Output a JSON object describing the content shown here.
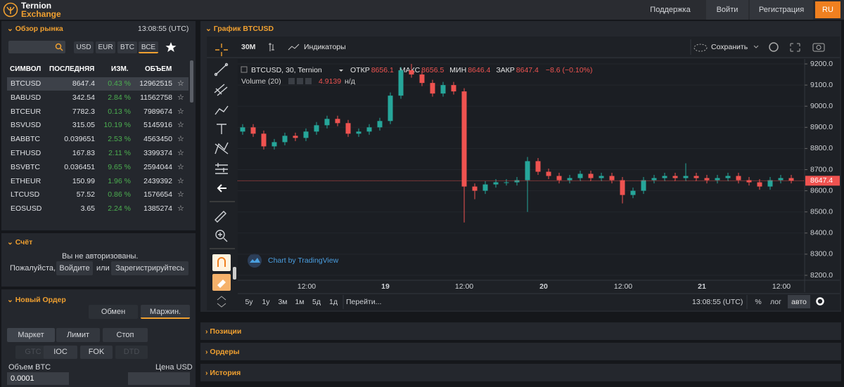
{
  "header": {
    "brand": [
      "Ternion",
      "Exchange"
    ],
    "nav": [
      "Поддержка",
      "Войти",
      "Регистрация",
      "RU"
    ]
  },
  "market": {
    "title": "Обзор рынка",
    "time": "13:08:55 (UTC)",
    "filters": [
      "USD",
      "EUR",
      "BTC",
      "ВСЕ"
    ],
    "columns": [
      "СИМВОЛ",
      "ПОСЛЕДНЯЯ",
      "ИЗМ.",
      "ОБЪЕМ"
    ],
    "rows": [
      [
        "BTCUSD",
        "8647.4",
        "0.43 %",
        "12962515"
      ],
      [
        "BABUSD",
        "342.54",
        "2.84 %",
        "11562758"
      ],
      [
        "BTCEUR",
        "7782.3",
        "0.13 %",
        "7989674"
      ],
      [
        "BSVUSD",
        "315.05",
        "10.19 %",
        "5145916"
      ],
      [
        "BABBTC",
        "0.039651",
        "2.53 %",
        "4563450"
      ],
      [
        "ETHUSD",
        "167.83",
        "2.11 %",
        "3399374"
      ],
      [
        "BSVBTC",
        "0.036451",
        "9.65 %",
        "2594044"
      ],
      [
        "ETHEUR",
        "150.99",
        "1.96 %",
        "2439392"
      ],
      [
        "LTCUSD",
        "57.52",
        "0.86 %",
        "1576654"
      ],
      [
        "EOSUSD",
        "3.65",
        "2.24 %",
        "1385274"
      ]
    ]
  },
  "account": {
    "title": "Счёт",
    "message": "Вы не авторизованы.",
    "login": [
      "Пожалуйста,",
      "Войдите",
      "или",
      "Зарегистрируйтесь"
    ]
  },
  "order": {
    "title": "Новый Ордер",
    "modes": [
      "Обмен",
      "Маржин."
    ],
    "types": [
      "Маркет",
      "Лимит",
      "Стоп"
    ],
    "tif": [
      "GTC",
      "IOC",
      "FOK",
      "DTD"
    ],
    "amount_label": "Объем BTC",
    "price_label": "Цена USD",
    "amount": "0.0001"
  },
  "chart": {
    "title": "График BTCUSD",
    "interval": "30M",
    "indicators": "Индикаторы",
    "save": "Сохранить",
    "symbol": "BTCUSD, 30, Ternion",
    "ohlc_labels": [
      "ОТКР",
      "МАКС",
      "МИН",
      "ЗАКР"
    ],
    "ohlc": [
      8656.1,
      8656.5,
      8646.4,
      8647.4
    ],
    "change": "−8.6 (−0.10%)",
    "volume_label": "Volume (20)",
    "volume_value": "4.9139",
    "volume_na": "н/д",
    "watermark": "Chart by TradingView",
    "time_labels": [
      "12:00",
      "19",
      "12:00",
      "20",
      "12:00",
      "21",
      "12:00"
    ],
    "ranges": [
      "5у",
      "1у",
      "3м",
      "1м",
      "5д",
      "1д"
    ],
    "goto": "Перейти...",
    "clock": "13:08:55 (UTC)",
    "scale_buttons": [
      "%",
      "лог",
      "авто"
    ],
    "last_price": 8647.4,
    "ylim": [
      8180,
      9220
    ],
    "yticks": [
      {
        "value": 8200,
        "label": "8200.0"
      },
      {
        "value": 8300,
        "label": "8300.0"
      },
      {
        "value": 8400,
        "label": "8400.0"
      },
      {
        "value": 8500,
        "label": "8500.0"
      },
      {
        "value": 8600,
        "label": "8600.0"
      },
      {
        "value": 8700,
        "label": "8700.0"
      },
      {
        "value": 8800,
        "label": "8800.0"
      },
      {
        "value": 8900,
        "label": "8900.0"
      },
      {
        "value": 9000,
        "label": "9000.0"
      },
      {
        "value": 9100,
        "label": "9100.0"
      },
      {
        "value": 9200,
        "label": "9200.0"
      }
    ],
    "up_color": "#26a69a",
    "down_color": "#ef5350",
    "open": [
      8880,
      8900,
      8870,
      8810,
      8830,
      8860,
      8850,
      8880,
      8910,
      8940,
      8920,
      8870,
      8880,
      8900,
      8930,
      9050,
      9170,
      9150,
      9110,
      9060,
      9100,
      9070,
      8620,
      8600,
      8630,
      8640,
      8640,
      8650,
      8740,
      8690,
      8670,
      8650,
      8660,
      8680,
      8660,
      8670,
      8650,
      8580,
      8600,
      8650,
      8660,
      8670,
      8660,
      8670,
      8660,
      8650,
      8660,
      8670,
      8650,
      8640,
      8620,
      8650,
      8660
    ],
    "high": [
      8915,
      8915,
      8885,
      8845,
      8875,
      8875,
      8895,
      8925,
      8955,
      8955,
      8935,
      8895,
      8915,
      8945,
      9065,
      9185,
      9200,
      9165,
      9125,
      9115,
      9115,
      9085,
      8635,
      8645,
      8655,
      8655,
      8665,
      8760,
      8755,
      8705,
      8685,
      8675,
      8695,
      8695,
      8685,
      8685,
      8665,
      8615,
      8665,
      8675,
      8685,
      8685,
      8730,
      8685,
      8675,
      8675,
      8685,
      8685,
      8665,
      8655,
      8665,
      8675,
      8675
    ],
    "low": [
      8865,
      8855,
      8795,
      8795,
      8815,
      8835,
      8835,
      8865,
      8895,
      8905,
      8855,
      8855,
      8865,
      8885,
      8915,
      9035,
      9135,
      9095,
      9045,
      9045,
      9055,
      8450,
      8560,
      8585,
      8615,
      8625,
      8625,
      8500,
      8675,
      8655,
      8635,
      8635,
      8645,
      8645,
      8645,
      8635,
      8540,
      8565,
      8585,
      8635,
      8645,
      8645,
      8645,
      8645,
      8635,
      8635,
      8645,
      8635,
      8625,
      8605,
      8605,
      8635,
      8635
    ],
    "close": [
      8900,
      8870,
      8810,
      8830,
      8860,
      8850,
      8880,
      8910,
      8940,
      8920,
      8870,
      8880,
      8900,
      8930,
      9050,
      9170,
      9150,
      9110,
      9060,
      9100,
      9070,
      8620,
      8600,
      8630,
      8640,
      8640,
      8650,
      8740,
      8690,
      8670,
      8650,
      8660,
      8680,
      8660,
      8670,
      8650,
      8580,
      8600,
      8650,
      8660,
      8670,
      8660,
      8670,
      8660,
      8650,
      8660,
      8670,
      8650,
      8640,
      8620,
      8650,
      8660,
      8647.4
    ]
  },
  "panels": [
    "Позиции",
    "Ордеры",
    "История"
  ]
}
